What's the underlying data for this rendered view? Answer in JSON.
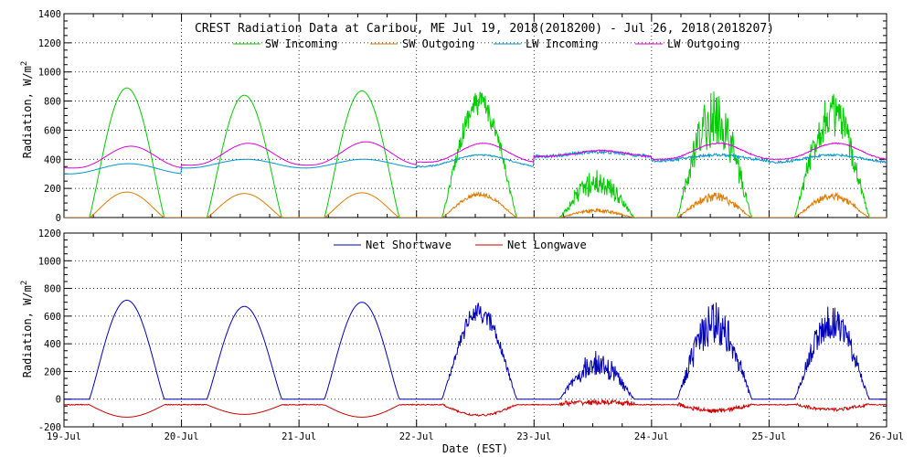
{
  "chart_data": [
    {
      "type": "line",
      "title": "CREST Radiation Data at Caribou, ME   Jul 19, 2018(2018200) - Jul 26, 2018(2018207)",
      "ylabel": "Radiation, W/m^2",
      "xlabel": "",
      "x_ticks": [
        "19-Jul",
        "20-Jul",
        "21-Jul",
        "22-Jul",
        "23-Jul",
        "24-Jul",
        "25-Jul",
        "26-Jul"
      ],
      "xlim": [
        0,
        7
      ],
      "ylim": [
        0,
        1400
      ],
      "y_ticks": [
        0,
        200,
        400,
        600,
        800,
        1000,
        1200,
        1400
      ],
      "grid": true,
      "legend_placement": "top",
      "series": [
        {
          "name": "SW Incoming",
          "color": "#00cc00",
          "daily_peaks": [
            890,
            840,
            870,
            880,
            330,
            880,
            860
          ]
        },
        {
          "name": "SW Outgoing",
          "color": "#e07b00",
          "daily_peaks": [
            175,
            165,
            170,
            175,
            60,
            175,
            170
          ]
        },
        {
          "name": "LW Incoming",
          "color": "#0099cc",
          "daily_max": [
            370,
            400,
            400,
            430,
            450,
            430,
            430
          ],
          "daily_min": [
            300,
            340,
            340,
            350,
            420,
            390,
            380
          ]
        },
        {
          "name": "LW Outgoing",
          "color": "#dd00dd",
          "daily_max": [
            490,
            510,
            520,
            510,
            460,
            510,
            510
          ],
          "daily_min": [
            340,
            360,
            360,
            380,
            420,
            400,
            400
          ]
        }
      ]
    },
    {
      "type": "line",
      "title": "",
      "ylabel": "Radiation, W/m^2",
      "xlabel": "Date (EST)",
      "x_ticks": [
        "19-Jul",
        "20-Jul",
        "21-Jul",
        "22-Jul",
        "23-Jul",
        "24-Jul",
        "25-Jul",
        "26-Jul"
      ],
      "xlim": [
        0,
        7
      ],
      "ylim": [
        -200,
        1200
      ],
      "y_ticks": [
        -200,
        0,
        200,
        400,
        600,
        800,
        1000,
        1200
      ],
      "grid": true,
      "legend_placement": "top",
      "series": [
        {
          "name": "Net Shortwave",
          "color": "#0000bb",
          "daily_peaks": [
            715,
            670,
            700,
            705,
            350,
            710,
            680
          ]
        },
        {
          "name": "Net Longwave",
          "color": "#cc0000",
          "daily_min": [
            -130,
            -110,
            -130,
            -120,
            -30,
            -90,
            -80
          ],
          "night_value": -40
        }
      ]
    }
  ]
}
